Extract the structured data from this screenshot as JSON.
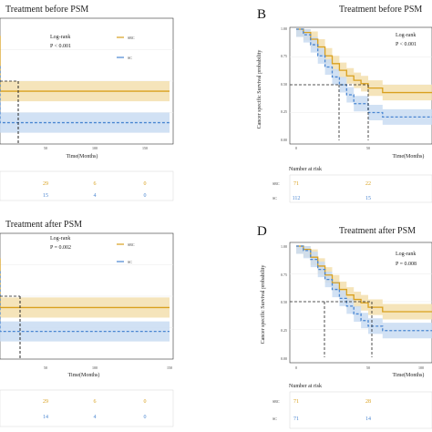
{
  "colors": {
    "src": "#D9A01E",
    "sc": "#4A86D1",
    "src_band": "#F3DFAE",
    "sc_band": "#C9DCF2",
    "grid": "#EBEBEB",
    "frame": "#333333"
  },
  "panels": {
    "tl": {
      "title": "Treatment before PSM",
      "logrank": "Log-rank",
      "pvalue": "P < 0.001",
      "legend_src": "SRC",
      "legend_sc": "SC",
      "xlabel": "Time(Months)",
      "xticks": [
        "50",
        "100",
        "150"
      ]
    },
    "tr": {
      "letter": "B",
      "title": "Treatment before PSM",
      "logrank": "Log-rank",
      "pvalue": "P < 0.001",
      "ylabel": "Cancer specific Survival probability",
      "xlabel": "Time(Months)",
      "yticks": [
        "1.00",
        "0.75",
        "0.50",
        "0.25",
        "0.00"
      ],
      "xticks": [
        "0",
        "50"
      ]
    },
    "bl": {
      "title": "Treatment after PSM",
      "logrank": "Log-rank",
      "pvalue": "P = 0.002",
      "legend_src": "SRC",
      "legend_sc": "SC",
      "xlabel": "Time(Months)",
      "xticks": [
        "50",
        "100",
        "150"
      ]
    },
    "br": {
      "letter": "D",
      "title": "Treatment after PSM",
      "logrank": "Log-rank",
      "pvalue": "P = 0.008",
      "ylabel": "Cancer specific Survival probability",
      "xlabel": "Time(Months)",
      "yticks": [
        "1.00",
        "0.75",
        "0.50",
        "0.25",
        "0.00"
      ],
      "xticks": [
        "0",
        "50",
        "100"
      ]
    }
  },
  "risk": {
    "tl": {
      "src": [
        "29",
        "6",
        "0"
      ],
      "sc": [
        "15",
        "4",
        "0"
      ]
    },
    "tr": {
      "header": "Number at risk",
      "src_label": "SRC",
      "sc_label": "SC",
      "src": [
        "71",
        "22"
      ],
      "sc": [
        "112",
        "15"
      ]
    },
    "bl": {
      "src": [
        "29",
        "6",
        "0"
      ],
      "sc": [
        "14",
        "4",
        "0"
      ]
    },
    "br": {
      "header": "Number at risk",
      "src_label": "SRC",
      "sc_label": "SC",
      "src": [
        "71",
        "28"
      ],
      "sc": [
        "71",
        "14"
      ]
    }
  },
  "chart_data": [
    {
      "type": "line",
      "panel": "tl",
      "xlim": [
        0,
        150
      ],
      "ylim": [
        0,
        1
      ],
      "series": [
        {
          "name": "SRC",
          "x": [
            0,
            2,
            5,
            8,
            12,
            16,
            20,
            26,
            60,
            150
          ],
          "y": [
            0.86,
            0.78,
            0.68,
            0.58,
            0.52,
            0.47,
            0.44,
            0.42,
            0.42,
            0.42
          ]
        },
        {
          "name": "SC",
          "x": [
            0,
            3,
            6,
            10,
            14,
            18,
            24,
            30,
            150
          ],
          "y": [
            0.62,
            0.52,
            0.43,
            0.34,
            0.26,
            0.22,
            0.19,
            0.17,
            0.17
          ]
        }
      ]
    },
    {
      "type": "line",
      "panel": "tr",
      "xlim": [
        0,
        150
      ],
      "ylim": [
        0,
        1
      ],
      "series": [
        {
          "name": "SRC",
          "x": [
            0,
            5,
            10,
            15,
            20,
            25,
            30,
            35,
            40,
            45,
            50,
            60,
            150
          ],
          "y": [
            1.0,
            0.97,
            0.91,
            0.84,
            0.76,
            0.69,
            0.63,
            0.58,
            0.54,
            0.51,
            0.47,
            0.43,
            0.43
          ]
        },
        {
          "name": "SC",
          "x": [
            0,
            5,
            10,
            15,
            20,
            25,
            30,
            35,
            40,
            50,
            60,
            150
          ],
          "y": [
            1.0,
            0.95,
            0.86,
            0.76,
            0.66,
            0.57,
            0.5,
            0.41,
            0.33,
            0.25,
            0.21,
            0.21
          ]
        }
      ]
    },
    {
      "type": "line",
      "panel": "bl",
      "xlim": [
        0,
        150
      ],
      "ylim": [
        0,
        1
      ],
      "series": [
        {
          "name": "SRC",
          "x": [
            0,
            3,
            6,
            10,
            14,
            18,
            24,
            30,
            150
          ],
          "y": [
            0.8,
            0.72,
            0.63,
            0.55,
            0.5,
            0.46,
            0.43,
            0.41,
            0.41
          ]
        },
        {
          "name": "SC",
          "x": [
            0,
            3,
            6,
            10,
            14,
            18,
            24,
            30,
            150
          ],
          "y": [
            0.7,
            0.6,
            0.5,
            0.42,
            0.35,
            0.29,
            0.25,
            0.22,
            0.22
          ]
        }
      ]
    },
    {
      "type": "line",
      "panel": "br",
      "xlim": [
        0,
        150
      ],
      "ylim": [
        0,
        1
      ],
      "series": [
        {
          "name": "SRC",
          "x": [
            0,
            5,
            10,
            15,
            20,
            25,
            30,
            35,
            40,
            45,
            50,
            60,
            150
          ],
          "y": [
            1.0,
            0.97,
            0.9,
            0.82,
            0.74,
            0.67,
            0.61,
            0.56,
            0.52,
            0.49,
            0.45,
            0.41,
            0.41
          ]
        },
        {
          "name": "SC",
          "x": [
            0,
            5,
            10,
            15,
            20,
            25,
            30,
            35,
            40,
            45,
            50,
            60,
            150
          ],
          "y": [
            1.0,
            0.96,
            0.88,
            0.79,
            0.7,
            0.61,
            0.53,
            0.46,
            0.39,
            0.33,
            0.28,
            0.24,
            0.24
          ]
        }
      ]
    }
  ]
}
